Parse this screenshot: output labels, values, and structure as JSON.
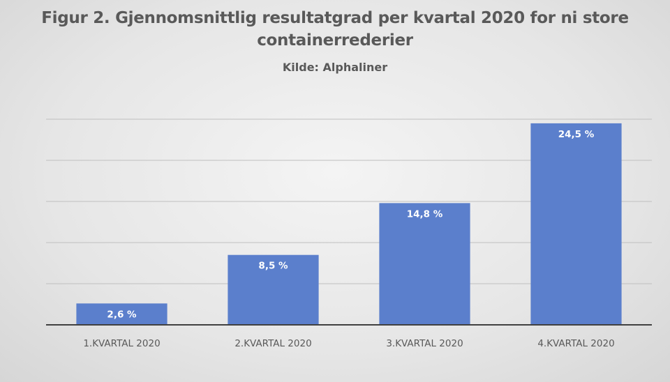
{
  "chart_data": {
    "type": "bar",
    "title": "Figur 2. Gjennomsnittlig resultatgrad per kvartal 2020 for ni store containerrederier",
    "subtitle": "Kilde: Alphaliner",
    "categories": [
      "1.KVARTAL 2020",
      "2.KVARTAL 2020",
      "3.KVARTAL 2020",
      "4.KVARTAL 2020"
    ],
    "values": [
      2.6,
      8.5,
      14.8,
      24.5
    ],
    "data_labels": [
      "2,6 %",
      "8,5 %",
      "14,8 %",
      "24,5 %"
    ],
    "ylim": [
      0,
      30
    ],
    "xlabel": "",
    "ylabel": "",
    "grid": true,
    "legend": "none",
    "bar_color": "#5b7fcc",
    "grid_color": "#bfbfbf",
    "axis_color": "#404040",
    "text_color": "#595959"
  }
}
